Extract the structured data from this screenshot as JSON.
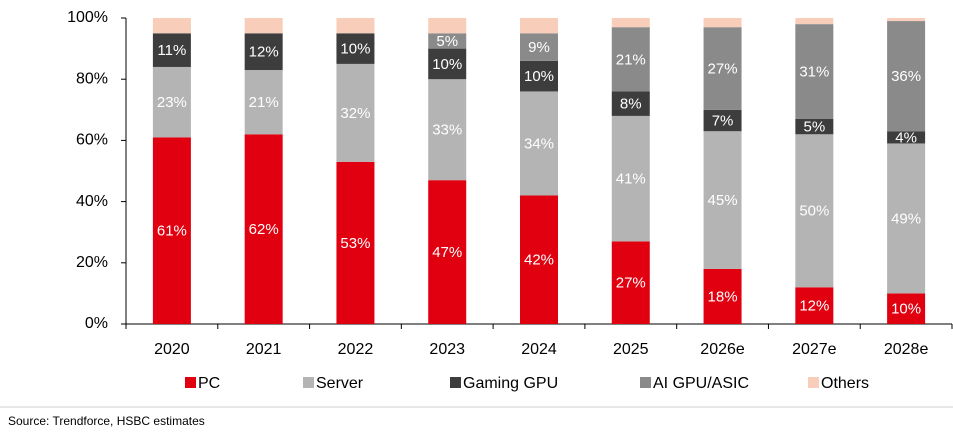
{
  "chart_data": {
    "type": "stacked_bar",
    "categories": [
      "2020",
      "2021",
      "2022",
      "2023",
      "2024",
      "2025",
      "2026e",
      "2027e",
      "2028e"
    ],
    "series": [
      {
        "name": "PC",
        "color": "#e0000f",
        "values": [
          61,
          62,
          53,
          47,
          42,
          27,
          18,
          12,
          10
        ],
        "value_labels": [
          "61%",
          "62%",
          "53%",
          "47%",
          "42%",
          "27%",
          "18%",
          "12%",
          "10%"
        ]
      },
      {
        "name": "Server",
        "color": "#b4b4b4",
        "values": [
          23,
          21,
          32,
          33,
          34,
          41,
          45,
          50,
          49
        ],
        "value_labels": [
          "23%",
          "21%",
          "32%",
          "33%",
          "34%",
          "41%",
          "45%",
          "50%",
          "49%"
        ]
      },
      {
        "name": "Gaming GPU",
        "color": "#3d3d3d",
        "values": [
          11,
          12,
          10,
          10,
          10,
          8,
          7,
          5,
          4
        ],
        "value_labels": [
          "11%",
          "12%",
          "10%",
          "10%",
          "10%",
          "8%",
          "7%",
          "5%",
          "4%"
        ]
      },
      {
        "name": "AI GPU/ASIC",
        "color": "#8a8a8a",
        "values": [
          0,
          0,
          0,
          5,
          9,
          21,
          27,
          31,
          36
        ],
        "value_labels": [
          null,
          null,
          null,
          "5%",
          "9%",
          "21%",
          "27%",
          "31%",
          "36%"
        ]
      },
      {
        "name": "Others",
        "color": "#f8cdb9",
        "values": [
          5,
          5,
          5,
          5,
          5,
          3,
          3,
          2,
          1
        ],
        "value_labels": [
          null,
          null,
          null,
          null,
          null,
          null,
          null,
          null,
          null
        ]
      }
    ],
    "ylim": [
      0,
      100
    ],
    "yticks": [
      {
        "value": 0,
        "label": "0%"
      },
      {
        "value": 20,
        "label": "20%"
      },
      {
        "value": 40,
        "label": "40%"
      },
      {
        "value": 60,
        "label": "60%"
      },
      {
        "value": 80,
        "label": "80%"
      },
      {
        "value": 100,
        "label": "100%"
      }
    ],
    "source": "Source: Trendforce, HSBC estimates"
  }
}
